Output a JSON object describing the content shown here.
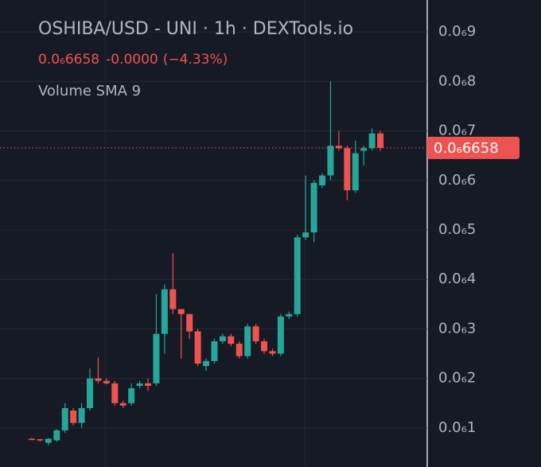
{
  "chart_data": {
    "type": "candlestick",
    "title": "OSHIBA/USD - UNI · 1h · DEXTools.io",
    "last_price_text": "0.0₆6658",
    "change_text": "-0.0000",
    "change_pct_text": "(−4.33%)",
    "indicator": "Volume SMA 9",
    "last_price": {
      "value": 6.658e-07,
      "label": "0.0₆6658"
    },
    "up_color": "#26a69a",
    "down_color": "#ef5350",
    "open": [
      7.8e-08,
      7.7e-08,
      7e-08,
      7.5e-08,
      9.5e-08,
      1.35e-07,
      1.1e-07,
      1.4e-07,
      2e-07,
      1.95e-07,
      1.9e-07,
      1.5e-07,
      1.5e-07,
      1.85e-07,
      1.9e-07,
      1.9e-07,
      2.9e-07,
      3.8e-07,
      3.4e-07,
      3.3e-07,
      2.95e-07,
      2.25e-07,
      2.35e-07,
      2.75e-07,
      2.85e-07,
      2.7e-07,
      2.45e-07,
      3.05e-07,
      2.75e-07,
      2.55e-07,
      2.5e-07,
      3.25e-07,
      3.3e-07,
      4.85e-07,
      4.95e-07,
      5.9e-07,
      6.1e-07,
      6.7e-07,
      6.65e-07,
      5.8e-07,
      6.6e-07,
      6.65e-07,
      6.95e-07
    ],
    "high": [
      8e-08,
      7.8e-08,
      8e-08,
      9.7e-08,
      1.5e-07,
      1.4e-07,
      1.5e-07,
      2.2e-07,
      2.42e-07,
      2e-07,
      1.95e-07,
      1.55e-07,
      1.9e-07,
      1.95e-07,
      2e-07,
      3.7e-07,
      3.9e-07,
      4.53e-07,
      3.4e-07,
      3.3e-07,
      3e-07,
      2.4e-07,
      2.8e-07,
      2.9e-07,
      2.9e-07,
      2.75e-07,
      3.1e-07,
      3.1e-07,
      2.8e-07,
      2.6e-07,
      3.3e-07,
      3.35e-07,
      4.9e-07,
      6.1e-07,
      6e-07,
      6.15e-07,
      8e-07,
      7e-07,
      6.7e-07,
      6.8e-07,
      6.7e-07,
      7.05e-07,
      7e-07
    ],
    "low": [
      7.5e-08,
      7.2e-08,
      6.5e-08,
      7.2e-08,
      9e-08,
      1.05e-07,
      1e-07,
      1.35e-07,
      1.9e-07,
      1.88e-07,
      1.45e-07,
      1.4e-07,
      1.45e-07,
      1.8e-07,
      1.75e-07,
      1.85e-07,
      2.5e-07,
      3.3e-07,
      2.4e-07,
      2.8e-07,
      2.25e-07,
      2.15e-07,
      2.3e-07,
      2.7e-07,
      2.65e-07,
      2.4e-07,
      2.4e-07,
      2.7e-07,
      2.5e-07,
      2.45e-07,
      2.45e-07,
      3.2e-07,
      3.25e-07,
      4.8e-07,
      4.75e-07,
      5.85e-07,
      6e-07,
      6.6e-07,
      5.6e-07,
      5.75e-07,
      6.3e-07,
      6.6e-07,
      6.6e-07
    ],
    "close": [
      7.6e-08,
      7.5e-08,
      7.8e-08,
      9.5e-08,
      1.4e-07,
      1.1e-07,
      1.4e-07,
      2e-07,
      1.95e-07,
      1.9e-07,
      1.5e-07,
      1.45e-07,
      1.8e-07,
      1.9e-07,
      1.85e-07,
      2.9e-07,
      3.8e-07,
      3.4e-07,
      3.3e-07,
      2.95e-07,
      2.3e-07,
      2.35e-07,
      2.75e-07,
      2.85e-07,
      2.7e-07,
      2.45e-07,
      3.05e-07,
      2.75e-07,
      2.55e-07,
      2.5e-07,
      3.25e-07,
      3.3e-07,
      4.85e-07,
      4.95e-07,
      5.95e-07,
      6.1e-07,
      6.7e-07,
      6.65e-07,
      5.8e-07,
      6.55e-07,
      6.65e-07,
      6.95e-07,
      6.658e-07
    ],
    "ylim": [
      2.1e-08,
      9.645e-07
    ],
    "yticks": [
      {
        "value": 1e-07,
        "label": "0.0₆1"
      },
      {
        "value": 2e-07,
        "label": "0.0₆2"
      },
      {
        "value": 3e-07,
        "label": "0.0₆3"
      },
      {
        "value": 4e-07,
        "label": "0.0₆4"
      },
      {
        "value": 5e-07,
        "label": "0.0₆5"
      },
      {
        "value": 6e-07,
        "label": "0.0₆6"
      },
      {
        "value": 7e-07,
        "label": "0.0₆7"
      },
      {
        "value": 8e-07,
        "label": "0.0₆8"
      },
      {
        "value": 9e-07,
        "label": "0.0₆9"
      }
    ],
    "grid": true
  }
}
